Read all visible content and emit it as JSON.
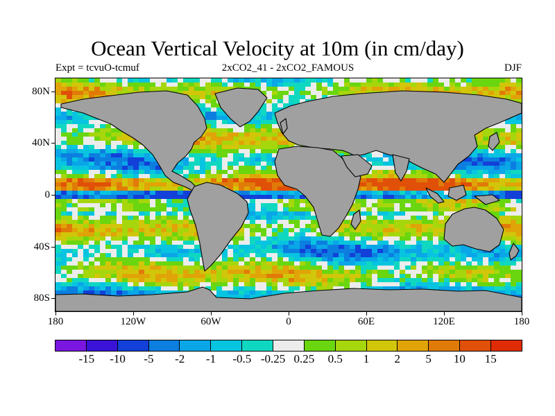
{
  "title": "Ocean Vertical Velocity at 10m (in cm/day)",
  "subtitle_left": "Expt = tcvuO-tcmuf",
  "subtitle_center": "2xCO2_41 - 2xCO2_FAMOUS",
  "subtitle_right": "DJF",
  "lat_labels": [
    "80N",
    "40N",
    "0",
    "40S",
    "80S"
  ],
  "lat_values": [
    80,
    40,
    0,
    -40,
    -80
  ],
  "lon_labels": [
    "180",
    "120W",
    "60W",
    "0",
    "60E",
    "120E",
    "180"
  ],
  "lon_values": [
    -180,
    -120,
    -60,
    0,
    60,
    120,
    180
  ],
  "colorbar": {
    "labels": [
      "-15",
      "-10",
      "-5",
      "-2",
      "-1",
      "-0.5",
      "-0.25",
      "0.25",
      "0.5",
      "1",
      "2",
      "5",
      "10",
      "15"
    ],
    "colors": [
      "#7a16e0",
      "#3a12d8",
      "#1240d8",
      "#0c7ee0",
      "#0aa6e8",
      "#08c4e0",
      "#10d8c0",
      "#ececec",
      "#6ad610",
      "#a6d60c",
      "#d2c60a",
      "#e0a408",
      "#e07a08",
      "#e05008",
      "#e02c06"
    ]
  },
  "land_color": "#a0a0a0"
}
